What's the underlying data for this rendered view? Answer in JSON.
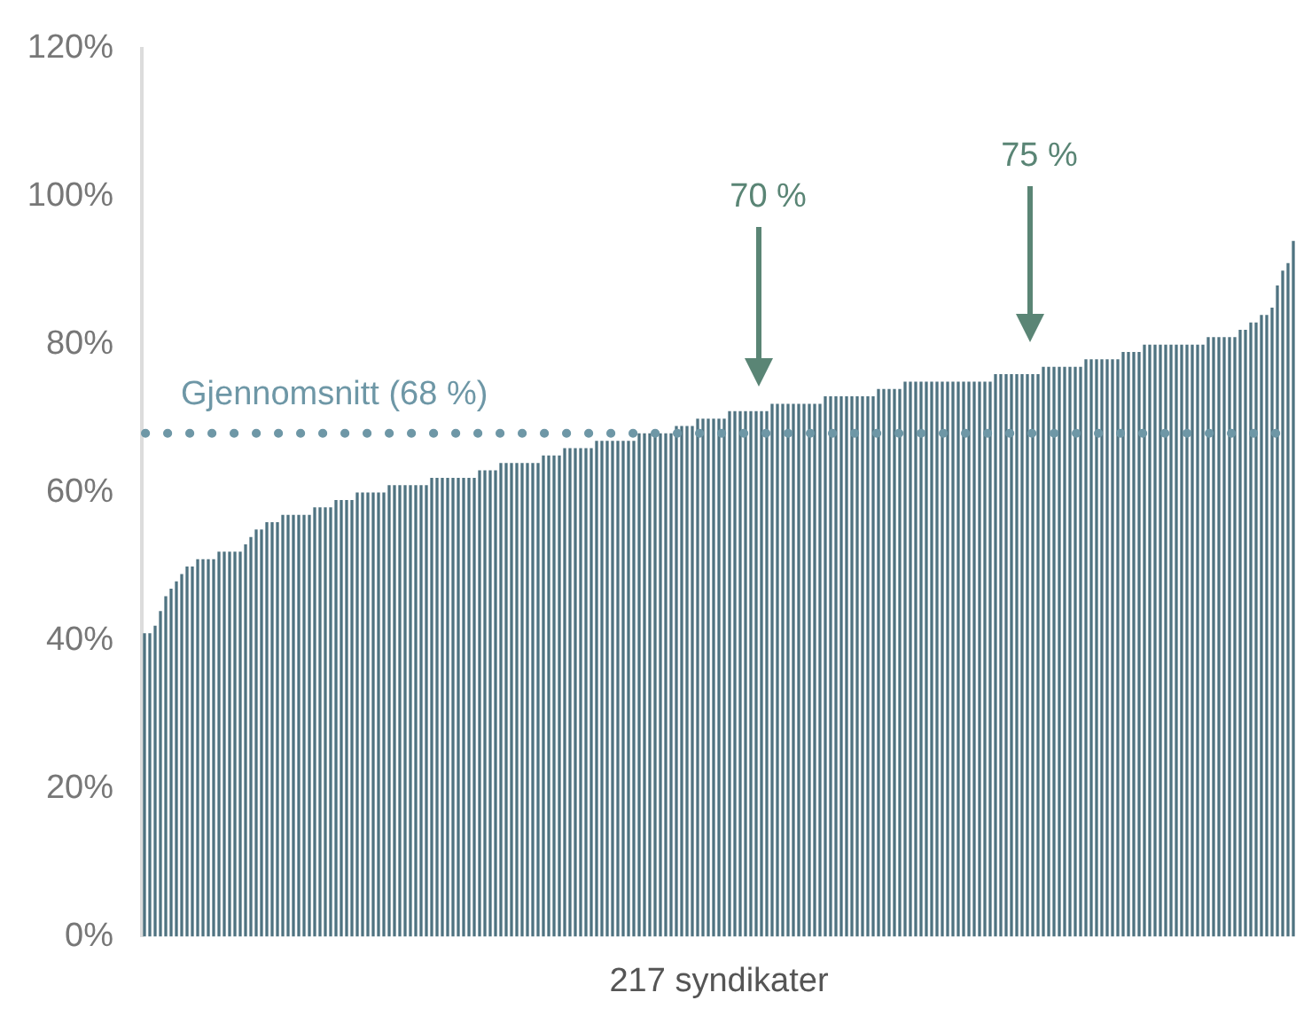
{
  "chart_data": {
    "type": "bar",
    "xlabel": "217 syndikater",
    "categories": [
      null,
      null,
      null,
      null,
      null,
      null,
      null,
      null,
      null,
      null,
      null,
      null,
      null,
      null,
      null,
      null,
      null,
      null,
      null,
      null,
      null,
      null,
      null,
      null,
      null,
      null,
      null,
      null,
      null,
      null,
      null,
      null,
      null,
      null,
      null,
      null,
      null,
      null,
      null,
      null,
      null,
      null,
      null,
      null,
      null,
      null,
      null,
      null,
      null,
      null,
      null,
      null,
      null,
      null,
      null,
      null,
      null,
      null,
      null,
      null,
      null,
      null,
      null,
      null,
      null,
      null,
      null,
      null,
      null,
      null,
      null,
      null,
      null,
      null,
      null,
      null,
      null,
      null,
      null,
      null,
      null,
      null,
      null,
      null,
      null,
      null,
      null,
      null,
      null,
      null,
      null,
      null,
      null,
      null,
      null,
      null,
      null,
      null,
      null,
      null,
      null,
      null,
      null,
      null,
      null,
      null,
      null,
      null,
      null,
      null,
      null,
      null,
      null,
      null,
      null,
      null,
      null,
      null,
      null,
      null,
      null,
      null,
      null,
      null,
      null,
      null,
      null,
      null,
      null,
      null,
      null,
      null,
      null,
      null,
      null,
      null,
      null,
      null,
      null,
      null,
      null,
      null,
      null,
      null,
      null,
      null,
      null,
      null,
      null,
      null,
      null,
      null,
      null,
      null,
      null,
      null,
      null,
      null,
      null,
      null,
      null,
      null,
      null,
      null,
      null,
      null,
      null,
      null,
      null,
      null,
      null,
      null,
      null,
      null,
      null,
      null,
      null,
      null,
      null,
      null,
      null,
      null,
      null,
      null,
      null,
      null,
      null,
      null,
      null,
      null,
      null,
      null,
      null,
      null,
      null,
      null,
      null,
      null,
      null,
      null,
      null,
      null,
      null,
      null,
      null,
      null,
      null,
      null,
      null,
      null,
      null,
      null,
      null,
      null,
      null,
      null,
      null
    ],
    "values": [
      41,
      41,
      42,
      44,
      46,
      47,
      48,
      49,
      50,
      50,
      51,
      51,
      51,
      51,
      52,
      52,
      52,
      52,
      52,
      53,
      54,
      55,
      55,
      56,
      56,
      56,
      57,
      57,
      57,
      57,
      57,
      57,
      58,
      58,
      58,
      58,
      59,
      59,
      59,
      59,
      60,
      60,
      60,
      60,
      60,
      60,
      61,
      61,
      61,
      61,
      61,
      61,
      61,
      61,
      62,
      62,
      62,
      62,
      62,
      62,
      62,
      62,
      62,
      63,
      63,
      63,
      63,
      64,
      64,
      64,
      64,
      64,
      64,
      64,
      64,
      65,
      65,
      65,
      65,
      66,
      66,
      66,
      66,
      66,
      66,
      67,
      67,
      67,
      67,
      67,
      67,
      67,
      67,
      68,
      68,
      68,
      68,
      68,
      68,
      68,
      69,
      69,
      69,
      69,
      70,
      70,
      70,
      70,
      70,
      70,
      71,
      71,
      71,
      71,
      71,
      71,
      71,
      71,
      72,
      72,
      72,
      72,
      72,
      72,
      72,
      72,
      72,
      72,
      73,
      73,
      73,
      73,
      73,
      73,
      73,
      73,
      73,
      73,
      74,
      74,
      74,
      74,
      74,
      75,
      75,
      75,
      75,
      75,
      75,
      75,
      75,
      75,
      75,
      75,
      75,
      75,
      75,
      75,
      75,
      75,
      76,
      76,
      76,
      76,
      76,
      76,
      76,
      76,
      76,
      77,
      77,
      77,
      77,
      77,
      77,
      77,
      77,
      78,
      78,
      78,
      78,
      78,
      78,
      78,
      79,
      79,
      79,
      79,
      80,
      80,
      80,
      80,
      80,
      80,
      80,
      80,
      80,
      80,
      80,
      80,
      81,
      81,
      81,
      81,
      81,
      81,
      82,
      82,
      83,
      83,
      84,
      84,
      85,
      88,
      90,
      91,
      94
    ],
    "color": "#4f7381",
    "ylim": [
      0,
      120
    ],
    "yticks": [
      {
        "value": 0,
        "label": "0%"
      },
      {
        "value": 20,
        "label": "20%"
      },
      {
        "value": 40,
        "label": "40%"
      },
      {
        "value": 60,
        "label": "60%"
      },
      {
        "value": 80,
        "label": "80%"
      },
      {
        "value": 100,
        "label": "100%"
      },
      {
        "value": 120,
        "label": "120%"
      }
    ],
    "ref_lines": [
      {
        "axis": "y",
        "value": 68,
        "label": "Gjennomsnitt (68 %)",
        "color": "#6e97a6",
        "line_style": "dotted"
      }
    ],
    "annotations": [
      "70 %",
      "75 %"
    ]
  }
}
